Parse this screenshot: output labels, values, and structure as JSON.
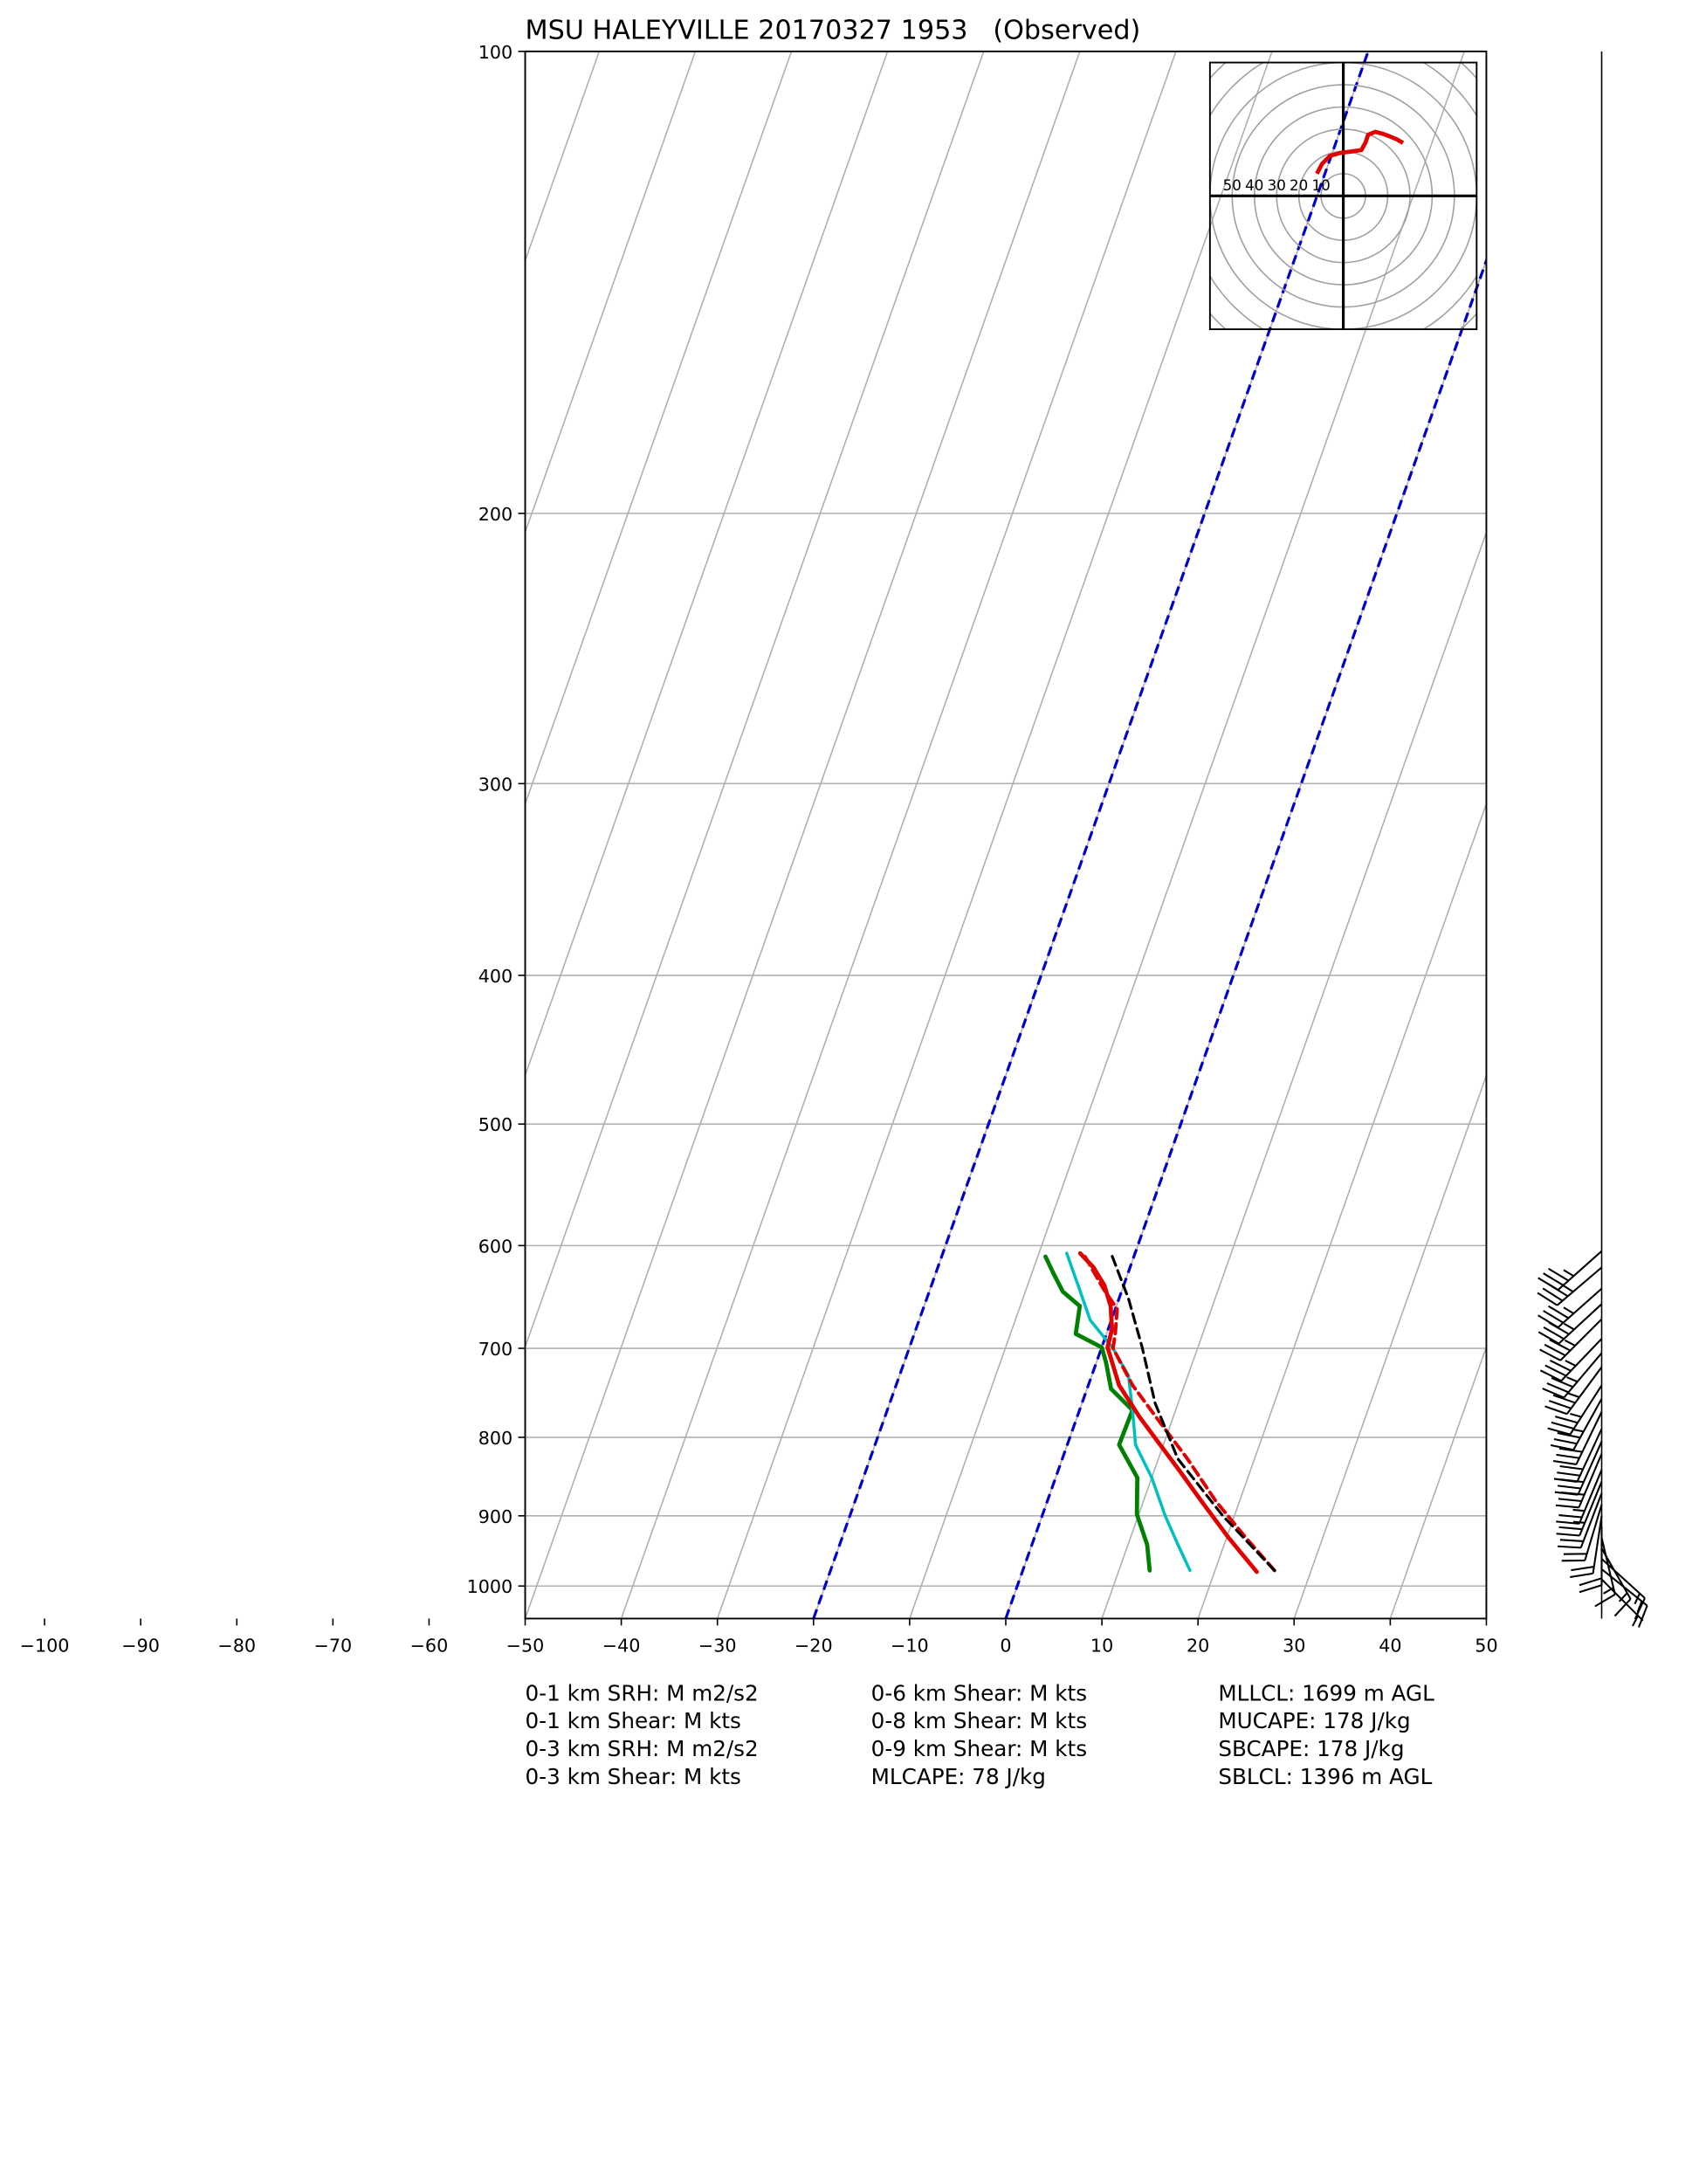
{
  "chart_data": {
    "type": "skewt",
    "title": "MSU HALEYVILLE 20170327 1953   (Observed)",
    "xlim": [
      -50,
      50
    ],
    "xticks": [
      {
        "value": -100,
        "label": "−100"
      },
      {
        "value": -90,
        "label": "−90"
      },
      {
        "value": -80,
        "label": "−80"
      },
      {
        "value": -70,
        "label": "−70"
      },
      {
        "value": -60,
        "label": "−60"
      },
      {
        "value": -50,
        "label": "−50"
      },
      {
        "value": -40,
        "label": "−40"
      },
      {
        "value": -30,
        "label": "−30"
      },
      {
        "value": -20,
        "label": "−20"
      },
      {
        "value": -10,
        "label": "−10"
      },
      0,
      10,
      20,
      30,
      40,
      50
    ],
    "ylim": [
      1050,
      100
    ],
    "yticks": [
      100,
      200,
      300,
      400,
      500,
      600,
      700,
      800,
      900,
      1000
    ],
    "log_scale_y": true,
    "grid": true,
    "highlight_isotherms": [
      0,
      -20
    ],
    "highlight_color": "#0000cc",
    "series": [
      {
        "color": "#008000",
        "linestyle": "solid",
        "width": 3,
        "pressure": [
          977,
          940,
          898,
          850,
          809,
          768,
          744,
          715,
          699,
          685,
          657,
          643,
          625,
          610
        ],
        "values": [
          13.2,
          12.0,
          9.8,
          8.5,
          5.4,
          5.5,
          2.5,
          1.0,
          0.0,
          -3.2,
          -3.8,
          -6.1,
          -7.8,
          -9.2
        ]
      },
      {
        "color": "#00bfbf",
        "linestyle": "solid",
        "width": 2.2,
        "pressure": [
          977,
          940,
          900,
          850,
          809,
          770,
          729,
          700,
          671,
          640,
          607
        ],
        "values": [
          17.4,
          15.2,
          12.8,
          10.0,
          7.1,
          5.6,
          3.8,
          1.2,
          -2.2,
          -4.5,
          -7.1
        ]
      },
      {
        "color": "#e00000",
        "linestyle": "dashed",
        "width": 2.5,
        "pressure": [
          977,
          930,
          880,
          826,
          780,
          740,
          700,
          685,
          660,
          640,
          607
        ],
        "values": [
          26.2,
          22.0,
          17.5,
          13.0,
          8.6,
          4.6,
          1.2,
          0.9,
          0.2,
          -2.0,
          -5.4
        ]
      },
      {
        "color": "#e00000",
        "linestyle": "solid",
        "width": 3,
        "pressure": [
          979,
          930,
          880,
          843,
          800,
          776,
          740,
          699,
          680,
          657,
          637,
          620,
          607
        ],
        "values": [
          24.4,
          20.2,
          16.0,
          12.8,
          8.8,
          6.5,
          3.2,
          0.6,
          0.4,
          -0.6,
          -2.0,
          -3.8,
          -5.7
        ]
      },
      {
        "color": "#000000",
        "linestyle": "dashed",
        "width": 2,
        "pressure": [
          977,
          900,
          826,
          760,
          699,
          650,
          607
        ],
        "values": [
          26.2,
          18.8,
          12.0,
          7.6,
          4.2,
          1.0,
          -2.5
        ]
      }
    ],
    "barbs": {
      "pressure": [
        990,
        975,
        960,
        945,
        930,
        915,
        900,
        885,
        870,
        855,
        840,
        820,
        805,
        790,
        770,
        755,
        740,
        720,
        705,
        690,
        670,
        655,
        640,
        620,
        605
      ],
      "u": [
        -5,
        -10,
        -11,
        -8,
        -4,
        0,
        3,
        6,
        8,
        9,
        10,
        11,
        12,
        13,
        14,
        16,
        18,
        20,
        22,
        24,
        25,
        26,
        27,
        27,
        27
      ],
      "v": [
        5,
        8,
        10,
        14,
        17,
        19,
        20,
        20,
        21,
        22,
        24,
        26,
        27,
        28,
        29,
        29,
        28,
        27,
        26,
        25,
        25,
        24,
        24,
        23,
        24
      ]
    },
    "hodograph": {
      "xlim": [
        -60,
        60
      ],
      "ylim": [
        -60,
        60
      ],
      "rings": [
        10,
        20,
        30,
        40,
        50,
        60,
        70,
        80
      ],
      "color": "#e00000",
      "u": [
        -11.9,
        -9.5,
        -6.0,
        -1.2,
        4.0,
        8.1,
        10.0,
        11.2,
        14.4,
        17.5,
        20.6,
        24.0,
        26.9
      ],
      "v": [
        10.0,
        14.5,
        18.0,
        19.4,
        20.0,
        20.6,
        24.0,
        27.5,
        28.8,
        28.0,
        26.9,
        25.5,
        23.8
      ]
    },
    "stats": [
      [
        "0-1 km SRH: M m2/s2",
        "0-1 km Shear: M kts",
        "0-3 km SRH: M m2/s2",
        "0-3 km Shear: M kts"
      ],
      [
        "0-6 km Shear: M kts",
        "0-8 km Shear: M kts",
        "0-9 km Shear: M kts",
        "MLCAPE: 78 J/kg"
      ],
      [
        "MLLCL: 1699 m AGL",
        "MUCAPE: 178 J/kg",
        "SBCAPE: 178 J/kg",
        "SBLCL: 1396 m AGL"
      ]
    ]
  }
}
